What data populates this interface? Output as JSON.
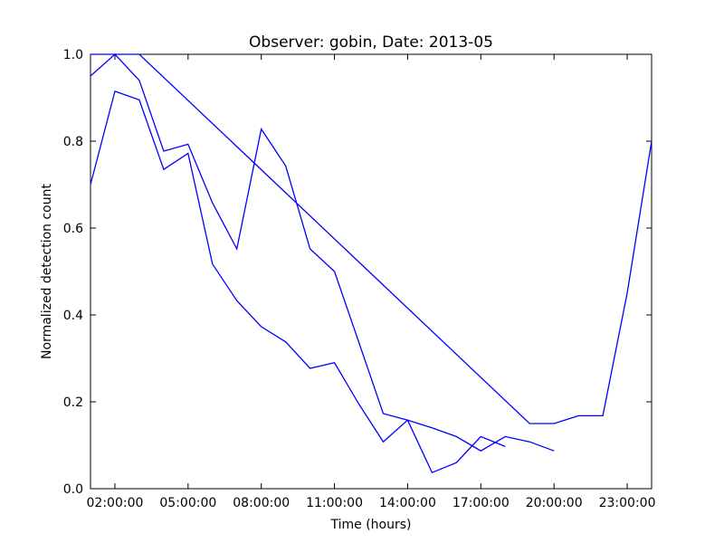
{
  "chart_data": {
    "type": "line",
    "title": "Observer: gobin, Date: 2013-05",
    "xlabel": "Time (hours)",
    "ylabel": "Normalized detection count",
    "x_unit": "hours",
    "xlim": [
      1,
      24
    ],
    "ylim": [
      0,
      1.0
    ],
    "x_ticks": [
      {
        "value": 2,
        "label": "02:00:00"
      },
      {
        "value": 5,
        "label": "05:00:00"
      },
      {
        "value": 8,
        "label": "08:00:00"
      },
      {
        "value": 11,
        "label": "11:00:00"
      },
      {
        "value": 14,
        "label": "14:00:00"
      },
      {
        "value": 17,
        "label": "17:00:00"
      },
      {
        "value": 20,
        "label": "20:00:00"
      },
      {
        "value": 23,
        "label": "23:00:00"
      }
    ],
    "y_ticks": [
      {
        "value": 0.0,
        "label": "0.0"
      },
      {
        "value": 0.2,
        "label": "0.2"
      },
      {
        "value": 0.4,
        "label": "0.4"
      },
      {
        "value": 0.6,
        "label": "0.6"
      },
      {
        "value": 0.8,
        "label": "0.8"
      },
      {
        "value": 1.0,
        "label": "1.0"
      }
    ],
    "grid": false,
    "line_color": "#0000ff",
    "series": [
      {
        "x": [
          1,
          2,
          3,
          4,
          5,
          6,
          7,
          8,
          9,
          10,
          11,
          12,
          13,
          14,
          15,
          16,
          17,
          18
        ],
        "y": [
          0.7,
          0.915,
          0.895,
          0.735,
          0.772,
          0.517,
          0.433,
          0.373,
          0.338,
          0.277,
          0.29,
          0.195,
          0.108,
          0.158,
          0.037,
          0.06,
          0.12,
          0.097
        ]
      },
      {
        "x": [
          1,
          2,
          3,
          4,
          5,
          6,
          7,
          8,
          9,
          10,
          11,
          12,
          13,
          14,
          15,
          16,
          17,
          18,
          19,
          20
        ],
        "y": [
          0.95,
          1.0,
          0.94,
          0.777,
          0.793,
          0.658,
          0.552,
          0.828,
          0.743,
          0.552,
          0.5,
          0.337,
          0.173,
          0.158,
          0.14,
          0.12,
          0.087,
          0.12,
          0.108,
          0.087
        ]
      },
      {
        "x": [
          1,
          3,
          19,
          20,
          21,
          22,
          23,
          24
        ],
        "y": [
          1.0,
          1.0,
          0.15,
          0.15,
          0.168,
          0.168,
          0.45,
          0.8
        ]
      }
    ]
  }
}
